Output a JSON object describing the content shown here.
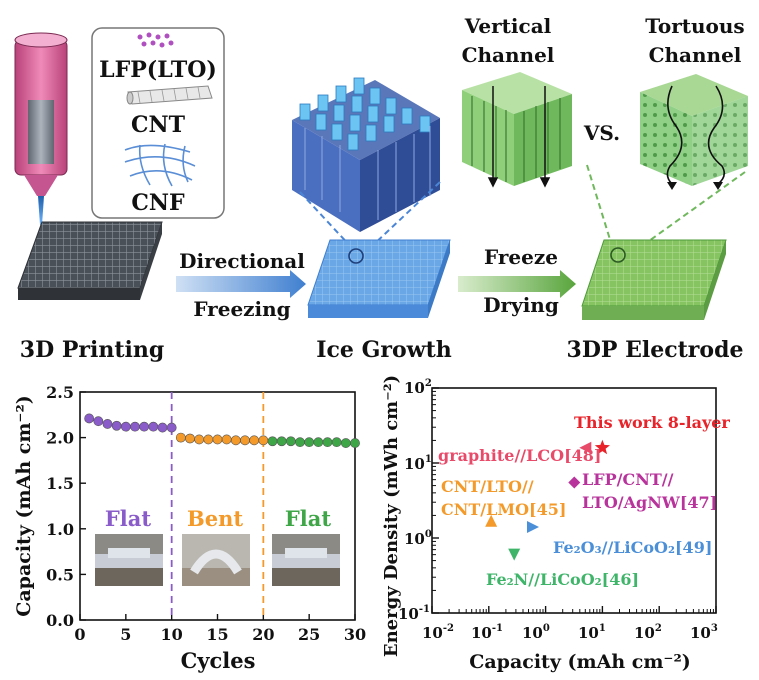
{
  "top": {
    "materials": {
      "lfp": "LFP(LTO)",
      "cnt": "CNT",
      "cnf": "CNF"
    },
    "channels": {
      "vertical_1": "Vertical",
      "vertical_2": "Channel",
      "tortuous_1": "Tortuous",
      "tortuous_2": "Channel",
      "vs": "VS."
    },
    "arrows": {
      "directional": "Directional",
      "freezing": "Freezing",
      "freeze": "Freeze",
      "drying": "Drying"
    },
    "steps": {
      "printing": "3D Printing",
      "ice": "Ice Growth",
      "electrode": "3DP Electrode"
    }
  },
  "chart_left": {
    "ylabel": "Capacity (mAh cm⁻²)",
    "xlabel": "Cycles",
    "xticks": [
      "0",
      "5",
      "10",
      "15",
      "20",
      "25",
      "30"
    ],
    "yticks": [
      "0.0",
      "0.5",
      "1.0",
      "1.5",
      "2.0",
      "2.5"
    ],
    "regions": [
      "Flat",
      "Bent",
      "Flat"
    ]
  },
  "chart_right": {
    "ylabel": "Energy Density (mWh cm⁻²)",
    "xlabel": "Capacity (mAh cm⁻²)",
    "ylabels": {
      "top": "10",
      "mid": "10",
      "low": "10",
      "bottom": "10"
    },
    "xlabels": {
      "t1": "10",
      "t2": "10",
      "t3": "10",
      "t4": "10",
      "t5": "10",
      "t6": "10"
    },
    "annotations": {
      "this_work": "This work 8-layer",
      "graphite": "graphite//LCO[48]",
      "lfp_1": "LFP/CNT//",
      "lfp_2": "LTO/AgNW[47]",
      "cnt_1": "CNT/LTO//",
      "cnt_2": "CNT/LMO[45]",
      "fe2o3": "Fe₂O₃//LiCoO₂[49]",
      "fe2n": "Fe₂N//LiCoO₂[46]"
    }
  },
  "chart_data": [
    {
      "type": "scatter",
      "xlabel": "Cycles",
      "ylabel": "Capacity (mAh cm⁻²)",
      "xlim": [
        0,
        30
      ],
      "ylim": [
        0,
        2.5
      ],
      "series": [
        {
          "name": "Flat",
          "color": "#8a5cc9",
          "x": [
            1,
            2,
            3,
            4,
            5,
            6,
            7,
            8,
            9,
            10
          ],
          "y": [
            2.21,
            2.18,
            2.15,
            2.13,
            2.12,
            2.12,
            2.12,
            2.12,
            2.11,
            2.11
          ]
        },
        {
          "name": "Bent",
          "color": "#f39a2a",
          "x": [
            11,
            12,
            13,
            14,
            15,
            16,
            17,
            18,
            19,
            20
          ],
          "y": [
            2.0,
            1.99,
            1.98,
            1.98,
            1.98,
            1.98,
            1.97,
            1.97,
            1.97,
            1.97
          ]
        },
        {
          "name": "Flat",
          "color": "#3fa648",
          "x": [
            21,
            22,
            23,
            24,
            25,
            26,
            27,
            28,
            29,
            30
          ],
          "y": [
            1.96,
            1.96,
            1.96,
            1.95,
            1.95,
            1.95,
            1.95,
            1.95,
            1.94,
            1.94
          ]
        }
      ],
      "dividers": [
        10,
        20
      ]
    },
    {
      "type": "scatter",
      "xlabel": "Capacity (mAh cm⁻²)",
      "ylabel": "Energy Density (mWh cm⁻²)",
      "xscale": "log",
      "yscale": "log",
      "xlim": [
        0.01,
        1000
      ],
      "ylim": [
        0.1,
        100
      ],
      "points": [
        {
          "label": "This work 8-layer",
          "x": 10,
          "y": 16,
          "color": "#e8232a",
          "marker": "star"
        },
        {
          "label": "graphite//LCO[48]",
          "x": 5,
          "y": 16,
          "color": "#e84a6a",
          "marker": "triangle-left"
        },
        {
          "label": "LFP/CNT//LTO/AgNW[47]",
          "x": 3.2,
          "y": 5.5,
          "color": "#b8339b",
          "marker": "diamond"
        },
        {
          "label": "CNT/LTO//CNT/LMO[45]",
          "x": 0.11,
          "y": 1.7,
          "color": "#f39a2a",
          "marker": "triangle-up"
        },
        {
          "label": "Fe2O3//LiCoO2[49]",
          "x": 0.6,
          "y": 1.4,
          "color": "#4a8fd8",
          "marker": "triangle-right"
        },
        {
          "label": "Fe2N//LiCoO2[46]",
          "x": 0.28,
          "y": 0.6,
          "color": "#3fb56a",
          "marker": "triangle-down"
        }
      ]
    }
  ]
}
